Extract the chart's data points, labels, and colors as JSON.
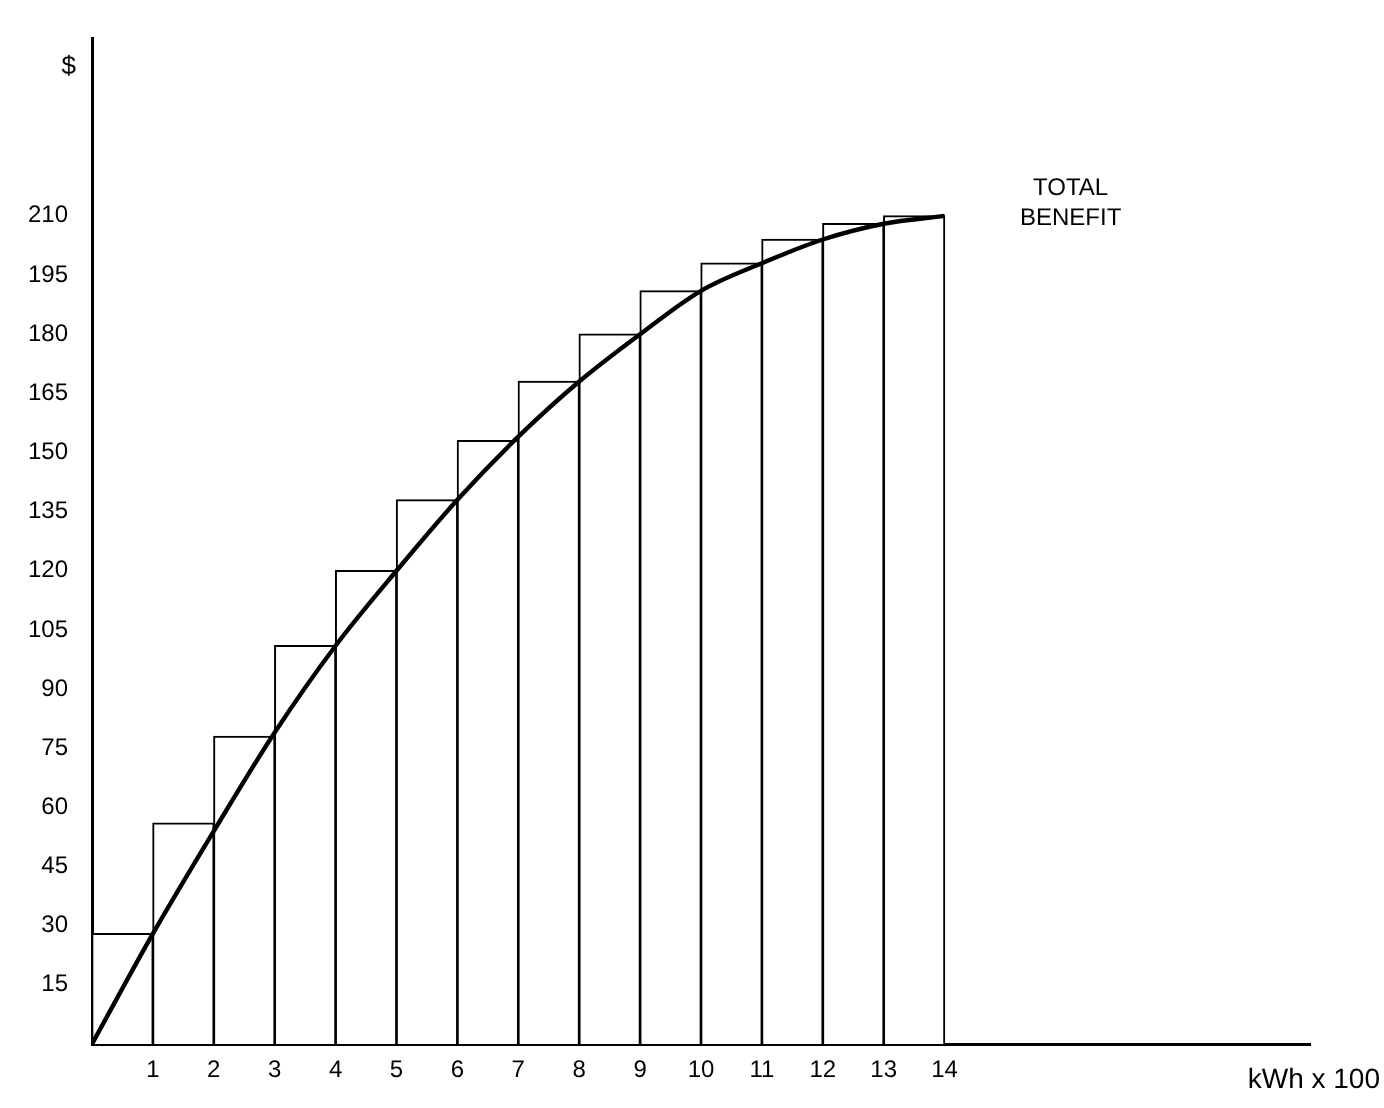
{
  "chart_data": {
    "type": "histogram",
    "xlabel": "kWh x 100",
    "ylabel": "$",
    "annotations": [
      "TOTAL BENEFIT"
    ],
    "series": [
      {
        "color": "#ffffff",
        "bins": [
          0,
          1,
          2,
          3,
          4,
          5,
          6,
          7,
          8,
          9,
          10,
          11,
          12,
          13,
          14
        ],
        "values": [
          28,
          56,
          78,
          101,
          120,
          138,
          153,
          168,
          180,
          191,
          198,
          204,
          208,
          210
        ]
      },
      {
        "type": "line",
        "color": "#000000",
        "x": [
          0,
          1,
          2,
          3,
          4,
          5,
          6,
          7,
          8,
          9,
          10,
          11,
          12,
          13,
          14
        ],
        "values": [
          0,
          28,
          54,
          79,
          101,
          120,
          138,
          154,
          168,
          180,
          191,
          198,
          204,
          208,
          210
        ]
      }
    ],
    "xlim": [
      0,
      20
    ],
    "xticks": [
      1,
      2,
      3,
      4,
      5,
      6,
      7,
      8,
      9,
      10,
      11,
      12,
      13,
      14
    ],
    "ylim": [
      0,
      255
    ],
    "yticks": [
      15,
      30,
      45,
      60,
      75,
      90,
      105,
      120,
      135,
      150,
      165,
      180,
      195,
      210
    ],
    "grid": false,
    "legend": false,
    "marker": "none",
    "line_style": "solid"
  }
}
